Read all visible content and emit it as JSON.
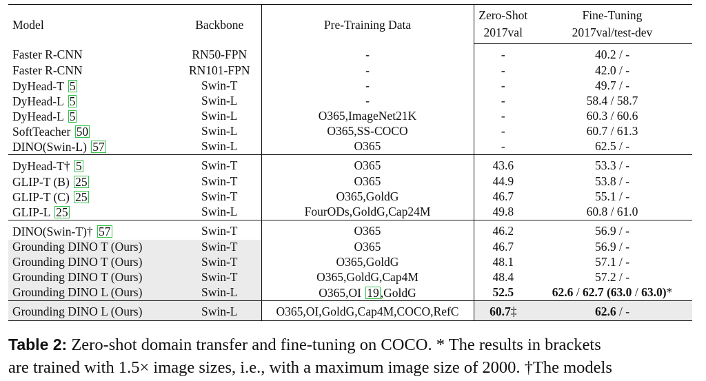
{
  "table": {
    "headers": {
      "model": "Model",
      "backbone": "Backbone",
      "pretraining": "Pre-Training Data",
      "zeroshot_line1": "Zero-Shot",
      "zeroshot_line2": "2017val",
      "finetune_line1": "Fine-Tuning",
      "finetune_line2": "2017val/test-dev"
    },
    "groups": [
      [
        {
          "model": "Faster R-CNN",
          "cite": "",
          "backbone": "RN50-FPN",
          "pre": "-",
          "zs": "-",
          "ft": "40.2 / -"
        },
        {
          "model": "Faster R-CNN",
          "cite": "",
          "backbone": "RN101-FPN",
          "pre": "-",
          "zs": "-",
          "ft": "42.0 / -"
        },
        {
          "model": "DyHead-T",
          "cite": "5",
          "backbone": "Swin-T",
          "pre": "-",
          "zs": "-",
          "ft": "49.7 / -"
        },
        {
          "model": "DyHead-L",
          "cite": "5",
          "backbone": "Swin-L",
          "pre": "-",
          "zs": "-",
          "ft": "58.4 / 58.7"
        },
        {
          "model": "DyHead-L",
          "cite": "5",
          "backbone": "Swin-L",
          "pre": "O365,ImageNet21K",
          "zs": "-",
          "ft": "60.3 / 60.6"
        },
        {
          "model": "SoftTeacher",
          "cite": "50",
          "backbone": "Swin-L",
          "pre": "O365,SS-COCO",
          "zs": "-",
          "ft": "60.7 / 61.3"
        },
        {
          "model": "DINO(Swin-L)",
          "cite": "57",
          "backbone": "Swin-L",
          "pre": "O365",
          "zs": "-",
          "ft": "62.5 / -"
        }
      ],
      [
        {
          "model": "DyHead-T†",
          "cite": "5",
          "backbone": "Swin-T",
          "pre": "O365",
          "zs": "43.6",
          "ft": "53.3 / -"
        },
        {
          "model": "GLIP-T (B)",
          "cite": "25",
          "backbone": "Swin-T",
          "pre": "O365",
          "zs": "44.9",
          "ft": "53.8 / -"
        },
        {
          "model": "GLIP-T (C)",
          "cite": "25",
          "backbone": "Swin-T",
          "pre": "O365,GoldG",
          "zs": "46.7",
          "ft": "55.1 / -"
        },
        {
          "model": "GLIP-L",
          "cite": "25",
          "backbone": "Swin-L",
          "pre": "FourODs,GoldG,Cap24M",
          "zs": "49.8",
          "ft": "60.8 / 61.0"
        }
      ],
      [
        {
          "model": "DINO(Swin-T)†",
          "cite": "57",
          "backbone": "Swin-T",
          "pre": "O365",
          "zs": "46.2",
          "ft": "56.9 / -",
          "hl": false
        },
        {
          "model": "Grounding DINO T (Ours)",
          "cite": "",
          "backbone": "Swin-T",
          "pre": "O365",
          "zs": "46.7",
          "ft": "56.9 / -",
          "hl": true
        },
        {
          "model": "Grounding DINO T (Ours)",
          "cite": "",
          "backbone": "Swin-T",
          "pre": "O365,GoldG",
          "zs": "48.1",
          "ft": "57.1 / -",
          "hl": true
        },
        {
          "model": "Grounding DINO T (Ours)",
          "cite": "",
          "backbone": "Swin-T",
          "pre": "O365,GoldG,Cap4M",
          "zs": "48.4",
          "ft": "57.2 / -",
          "hl": true
        },
        {
          "model": "Grounding DINO L (Ours)",
          "cite": "",
          "backbone": "Swin-L",
          "pre_a": "O365,OI ",
          "pre_cite": "19",
          "pre_b": ",GoldG",
          "zs": "52.5",
          "zs_bold": true,
          "ft_bold": "62.6",
          "ft_sep1": " / ",
          "ft_bold2": "62.7",
          "ft_sp": " ",
          "ft_bold3": "(63.0",
          "ft_sep2": " / ",
          "ft_bold4": "63.0)",
          "ft_tail": "*",
          "hl": true
        }
      ],
      [
        {
          "model": "Grounding DINO L (Ours)",
          "cite": "",
          "backbone": "Swin-L",
          "pre": "O365,OI,GoldG,Cap4M,COCO,RefC",
          "zs_bold": "60.7",
          "zs_tail": "‡",
          "ft_bold": "62.6",
          "ft_tail": " / -",
          "hl": true
        }
      ]
    ]
  },
  "caption": {
    "label": "Table 2:",
    "line1": " Zero-shot domain transfer and fine-tuning on COCO. * The results in brackets",
    "line2": "are trained with 1.5× image sizes, i.e., with a maximum image size of 2000. †The models"
  }
}
